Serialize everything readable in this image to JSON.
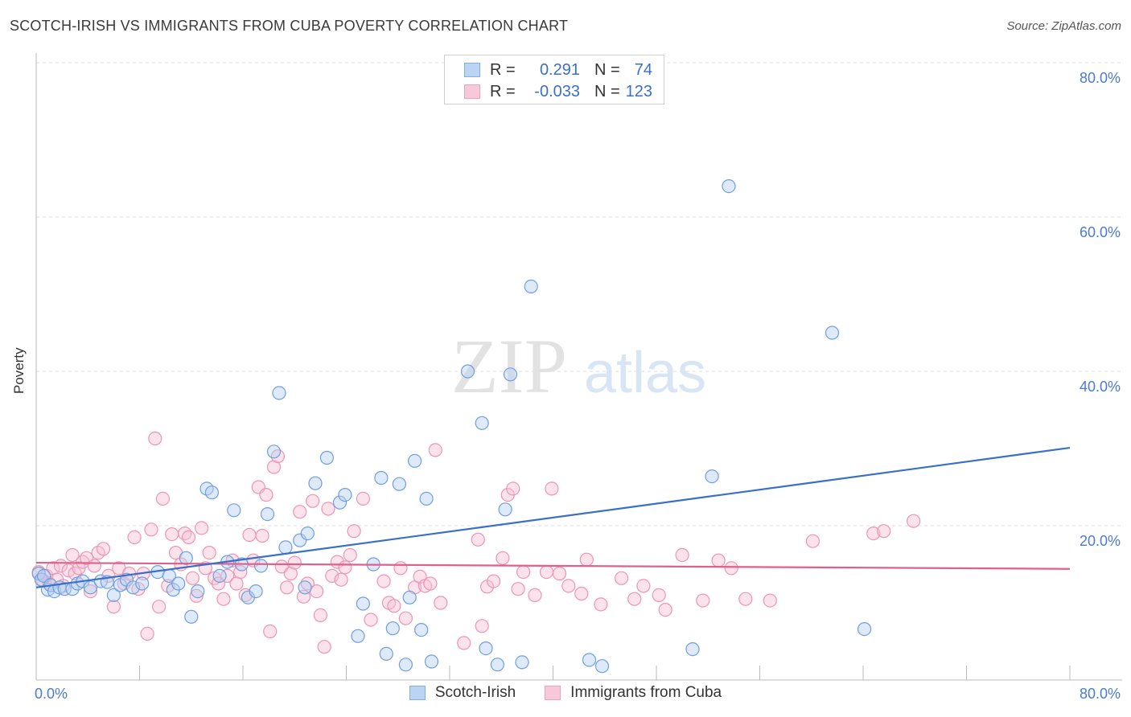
{
  "header": {
    "title": "SCOTCH-IRISH VS IMMIGRANTS FROM CUBA POVERTY CORRELATION CHART",
    "source": "Source: ZipAtlas.com"
  },
  "watermark": {
    "zip": "ZIP",
    "atlas": "atlas"
  },
  "legend": {
    "rows": [
      {
        "r_label": "R =",
        "r_value": "0.291",
        "n_label": "N =",
        "n_value": "74"
      },
      {
        "r_label": "R =",
        "r_value": "-0.033",
        "n_label": "N =",
        "n_value": "123"
      }
    ]
  },
  "chart_data": {
    "type": "scatter",
    "title": "SCOTCH-IRISH VS IMMIGRANTS FROM CUBA POVERTY CORRELATION CHART",
    "ylabel": "Poverty",
    "xlabel": "",
    "xlim": [
      0,
      80
    ],
    "ylim": [
      0,
      80
    ],
    "x_tick_labels": [
      "0.0%",
      "80.0%"
    ],
    "y_tick_labels": [
      "20.0%",
      "40.0%",
      "60.0%",
      "80.0%"
    ],
    "y_ticks": [
      20,
      40,
      60,
      80
    ],
    "grid": true,
    "legend_position": "top-center",
    "colors": {
      "Scotch-Irish": "#7eaee8",
      "Immigrants from Cuba": "#f0a0bc",
      "Scotch-Irish_line": "#3a6fc8",
      "Immigrants from Cuba_line": "#e0608c",
      "tick_text": "#4a7bd0"
    },
    "series": [
      {
        "name": "Scotch-Irish",
        "trend": {
          "x": [
            0,
            80
          ],
          "y": [
            12.0,
            30.1
          ]
        },
        "points": [
          [
            0.2,
            13.8
          ],
          [
            0.4,
            13.0
          ],
          [
            0.6,
            13.5
          ],
          [
            0.9,
            11.7
          ],
          [
            1.1,
            12.3
          ],
          [
            1.4,
            11.5
          ],
          [
            1.8,
            12.0
          ],
          [
            2.2,
            11.8
          ],
          [
            2.8,
            11.8
          ],
          [
            3.2,
            12.5
          ],
          [
            3.6,
            12.8
          ],
          [
            4.2,
            12.0
          ],
          [
            5.0,
            12.8
          ],
          [
            5.5,
            12.7
          ],
          [
            6.0,
            11.0
          ],
          [
            6.5,
            12.3
          ],
          [
            7.0,
            13.0
          ],
          [
            7.5,
            12.0
          ],
          [
            8.2,
            12.5
          ],
          [
            9.4,
            14.0
          ],
          [
            10.3,
            13.5
          ],
          [
            10.6,
            11.7
          ],
          [
            11.0,
            12.5
          ],
          [
            11.6,
            15.8
          ],
          [
            12.5,
            11.5
          ],
          [
            12.0,
            8.2
          ],
          [
            13.2,
            24.8
          ],
          [
            13.6,
            24.3
          ],
          [
            14.2,
            13.5
          ],
          [
            14.8,
            15.3
          ],
          [
            15.3,
            22.0
          ],
          [
            15.9,
            15.0
          ],
          [
            16.4,
            10.7
          ],
          [
            17.0,
            11.5
          ],
          [
            17.4,
            14.8
          ],
          [
            17.9,
            21.5
          ],
          [
            18.4,
            29.6
          ],
          [
            18.8,
            37.2
          ],
          [
            19.3,
            17.2
          ],
          [
            20.4,
            18.1
          ],
          [
            20.8,
            12.0
          ],
          [
            21.6,
            25.5
          ],
          [
            21.0,
            19.0
          ],
          [
            22.5,
            28.8
          ],
          [
            23.5,
            23.0
          ],
          [
            23.9,
            24.0
          ],
          [
            24.9,
            5.7
          ],
          [
            25.3,
            9.9
          ],
          [
            26.1,
            15.0
          ],
          [
            26.7,
            26.2
          ],
          [
            27.1,
            3.4
          ],
          [
            27.6,
            6.7
          ],
          [
            28.1,
            25.4
          ],
          [
            28.6,
            2.0
          ],
          [
            28.9,
            10.7
          ],
          [
            29.3,
            28.4
          ],
          [
            29.8,
            6.5
          ],
          [
            30.2,
            23.5
          ],
          [
            30.6,
            2.4
          ],
          [
            33.4,
            40.0
          ],
          [
            34.5,
            33.3
          ],
          [
            34.8,
            4.1
          ],
          [
            35.7,
            2.0
          ],
          [
            36.3,
            22.1
          ],
          [
            36.7,
            39.6
          ],
          [
            37.6,
            2.3
          ],
          [
            38.3,
            51.0
          ],
          [
            42.8,
            2.6
          ],
          [
            43.8,
            1.8
          ],
          [
            50.8,
            4.0
          ],
          [
            52.3,
            26.4
          ],
          [
            53.6,
            64.0
          ],
          [
            61.6,
            45.0
          ],
          [
            64.1,
            6.6
          ]
        ]
      },
      {
        "name": "Immigrants from Cuba",
        "trend": {
          "x": [
            0,
            80
          ],
          "y": [
            15.2,
            14.4
          ]
        },
        "points": [
          [
            0.2,
            14.0
          ],
          [
            0.5,
            13.0
          ],
          [
            0.8,
            13.5
          ],
          [
            1.0,
            12.5
          ],
          [
            1.3,
            14.5
          ],
          [
            1.6,
            13.0
          ],
          [
            1.9,
            14.8
          ],
          [
            2.1,
            12.2
          ],
          [
            2.5,
            14.2
          ],
          [
            2.8,
            16.2
          ],
          [
            3.0,
            13.8
          ],
          [
            3.3,
            14.5
          ],
          [
            3.6,
            15.3
          ],
          [
            3.9,
            15.8
          ],
          [
            4.2,
            11.5
          ],
          [
            4.5,
            14.8
          ],
          [
            4.8,
            16.5
          ],
          [
            5.2,
            17.0
          ],
          [
            5.6,
            13.5
          ],
          [
            6.0,
            9.5
          ],
          [
            6.4,
            14.5
          ],
          [
            6.8,
            12.5
          ],
          [
            7.2,
            13.8
          ],
          [
            7.6,
            18.5
          ],
          [
            7.9,
            11.8
          ],
          [
            8.3,
            13.8
          ],
          [
            8.6,
            6.0
          ],
          [
            8.9,
            19.5
          ],
          [
            9.2,
            31.3
          ],
          [
            9.5,
            9.5
          ],
          [
            9.8,
            23.5
          ],
          [
            10.2,
            12.2
          ],
          [
            10.5,
            18.9
          ],
          [
            10.8,
            16.5
          ],
          [
            11.2,
            15.0
          ],
          [
            11.5,
            19.0
          ],
          [
            11.8,
            18.5
          ],
          [
            12.1,
            13.2
          ],
          [
            12.4,
            10.9
          ],
          [
            12.8,
            19.7
          ],
          [
            13.1,
            14.5
          ],
          [
            13.4,
            16.5
          ],
          [
            13.8,
            13.2
          ],
          [
            14.1,
            12.5
          ],
          [
            14.5,
            10.5
          ],
          [
            14.8,
            13.5
          ],
          [
            15.2,
            15.5
          ],
          [
            15.5,
            12.5
          ],
          [
            15.8,
            14.0
          ],
          [
            16.2,
            11.0
          ],
          [
            16.5,
            18.8
          ],
          [
            16.8,
            15.5
          ],
          [
            17.2,
            25.0
          ],
          [
            17.5,
            18.7
          ],
          [
            17.8,
            24.0
          ],
          [
            18.1,
            6.3
          ],
          [
            18.4,
            27.6
          ],
          [
            18.7,
            29.0
          ],
          [
            19.0,
            14.7
          ],
          [
            19.4,
            12.0
          ],
          [
            19.7,
            13.8
          ],
          [
            20.0,
            15.2
          ],
          [
            20.4,
            21.8
          ],
          [
            20.7,
            10.8
          ],
          [
            21.0,
            12.5
          ],
          [
            21.4,
            23.2
          ],
          [
            21.7,
            11.5
          ],
          [
            22.0,
            8.4
          ],
          [
            22.3,
            4.3
          ],
          [
            22.6,
            22.2
          ],
          [
            22.9,
            13.5
          ],
          [
            23.3,
            15.3
          ],
          [
            23.6,
            13.0
          ],
          [
            23.9,
            14.6
          ],
          [
            24.3,
            16.2
          ],
          [
            24.6,
            19.3
          ],
          [
            25.3,
            23.5
          ],
          [
            25.9,
            7.8
          ],
          [
            26.9,
            12.8
          ],
          [
            27.3,
            10.0
          ],
          [
            27.7,
            9.6
          ],
          [
            28.2,
            14.5
          ],
          [
            28.6,
            8.0
          ],
          [
            29.3,
            12.0
          ],
          [
            29.7,
            13.4
          ],
          [
            30.1,
            12.2
          ],
          [
            30.5,
            12.5
          ],
          [
            30.9,
            29.8
          ],
          [
            31.3,
            10.0
          ],
          [
            33.1,
            4.8
          ],
          [
            34.2,
            18.2
          ],
          [
            34.5,
            7.0
          ],
          [
            34.9,
            12.1
          ],
          [
            35.4,
            12.8
          ],
          [
            36.1,
            15.8
          ],
          [
            36.5,
            24.0
          ],
          [
            36.9,
            24.8
          ],
          [
            37.3,
            11.8
          ],
          [
            37.7,
            14.0
          ],
          [
            38.6,
            11.0
          ],
          [
            39.5,
            14.0
          ],
          [
            39.9,
            24.8
          ],
          [
            40.5,
            13.8
          ],
          [
            41.2,
            12.2
          ],
          [
            42.2,
            11.2
          ],
          [
            42.6,
            15.6
          ],
          [
            43.7,
            9.8
          ],
          [
            45.3,
            13.2
          ],
          [
            46.3,
            10.5
          ],
          [
            47.0,
            12.2
          ],
          [
            48.2,
            11.0
          ],
          [
            48.7,
            9.1
          ],
          [
            50.0,
            16.2
          ],
          [
            51.6,
            10.3
          ],
          [
            52.8,
            15.5
          ],
          [
            53.8,
            14.5
          ],
          [
            54.9,
            10.5
          ],
          [
            56.8,
            10.3
          ],
          [
            60.1,
            18.0
          ],
          [
            64.8,
            19.0
          ],
          [
            65.6,
            19.3
          ],
          [
            67.9,
            20.6
          ]
        ]
      }
    ]
  },
  "bottom_legend": {
    "items": [
      {
        "label": "Scotch-Irish"
      },
      {
        "label": "Immigrants from Cuba"
      }
    ]
  }
}
